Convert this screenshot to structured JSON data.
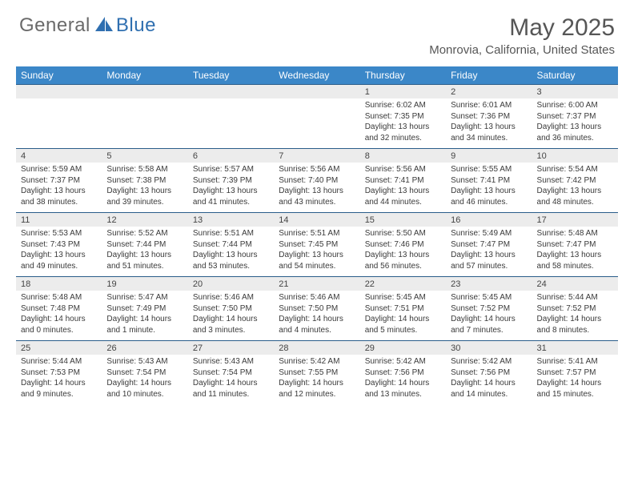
{
  "brand": {
    "part1": "General",
    "part2": "Blue"
  },
  "title": "May 2025",
  "location": "Monrovia, California, United States",
  "colors": {
    "header_bg": "#3b87c8",
    "header_text": "#ffffff",
    "daynum_bg": "#ececec",
    "border_top": "#2a5d8a",
    "body_text": "#3a3a3a",
    "title_text": "#565656",
    "logo_gray": "#6a6a6a",
    "logo_blue": "#2f6fb0"
  },
  "weekdays": [
    "Sunday",
    "Monday",
    "Tuesday",
    "Wednesday",
    "Thursday",
    "Friday",
    "Saturday"
  ],
  "weeks": [
    [
      null,
      null,
      null,
      null,
      {
        "n": "1",
        "sr": "Sunrise: 6:02 AM",
        "ss": "Sunset: 7:35 PM",
        "dl": "Daylight: 13 hours and 32 minutes."
      },
      {
        "n": "2",
        "sr": "Sunrise: 6:01 AM",
        "ss": "Sunset: 7:36 PM",
        "dl": "Daylight: 13 hours and 34 minutes."
      },
      {
        "n": "3",
        "sr": "Sunrise: 6:00 AM",
        "ss": "Sunset: 7:37 PM",
        "dl": "Daylight: 13 hours and 36 minutes."
      }
    ],
    [
      {
        "n": "4",
        "sr": "Sunrise: 5:59 AM",
        "ss": "Sunset: 7:37 PM",
        "dl": "Daylight: 13 hours and 38 minutes."
      },
      {
        "n": "5",
        "sr": "Sunrise: 5:58 AM",
        "ss": "Sunset: 7:38 PM",
        "dl": "Daylight: 13 hours and 39 minutes."
      },
      {
        "n": "6",
        "sr": "Sunrise: 5:57 AM",
        "ss": "Sunset: 7:39 PM",
        "dl": "Daylight: 13 hours and 41 minutes."
      },
      {
        "n": "7",
        "sr": "Sunrise: 5:56 AM",
        "ss": "Sunset: 7:40 PM",
        "dl": "Daylight: 13 hours and 43 minutes."
      },
      {
        "n": "8",
        "sr": "Sunrise: 5:56 AM",
        "ss": "Sunset: 7:41 PM",
        "dl": "Daylight: 13 hours and 44 minutes."
      },
      {
        "n": "9",
        "sr": "Sunrise: 5:55 AM",
        "ss": "Sunset: 7:41 PM",
        "dl": "Daylight: 13 hours and 46 minutes."
      },
      {
        "n": "10",
        "sr": "Sunrise: 5:54 AM",
        "ss": "Sunset: 7:42 PM",
        "dl": "Daylight: 13 hours and 48 minutes."
      }
    ],
    [
      {
        "n": "11",
        "sr": "Sunrise: 5:53 AM",
        "ss": "Sunset: 7:43 PM",
        "dl": "Daylight: 13 hours and 49 minutes."
      },
      {
        "n": "12",
        "sr": "Sunrise: 5:52 AM",
        "ss": "Sunset: 7:44 PM",
        "dl": "Daylight: 13 hours and 51 minutes."
      },
      {
        "n": "13",
        "sr": "Sunrise: 5:51 AM",
        "ss": "Sunset: 7:44 PM",
        "dl": "Daylight: 13 hours and 53 minutes."
      },
      {
        "n": "14",
        "sr": "Sunrise: 5:51 AM",
        "ss": "Sunset: 7:45 PM",
        "dl": "Daylight: 13 hours and 54 minutes."
      },
      {
        "n": "15",
        "sr": "Sunrise: 5:50 AM",
        "ss": "Sunset: 7:46 PM",
        "dl": "Daylight: 13 hours and 56 minutes."
      },
      {
        "n": "16",
        "sr": "Sunrise: 5:49 AM",
        "ss": "Sunset: 7:47 PM",
        "dl": "Daylight: 13 hours and 57 minutes."
      },
      {
        "n": "17",
        "sr": "Sunrise: 5:48 AM",
        "ss": "Sunset: 7:47 PM",
        "dl": "Daylight: 13 hours and 58 minutes."
      }
    ],
    [
      {
        "n": "18",
        "sr": "Sunrise: 5:48 AM",
        "ss": "Sunset: 7:48 PM",
        "dl": "Daylight: 14 hours and 0 minutes."
      },
      {
        "n": "19",
        "sr": "Sunrise: 5:47 AM",
        "ss": "Sunset: 7:49 PM",
        "dl": "Daylight: 14 hours and 1 minute."
      },
      {
        "n": "20",
        "sr": "Sunrise: 5:46 AM",
        "ss": "Sunset: 7:50 PM",
        "dl": "Daylight: 14 hours and 3 minutes."
      },
      {
        "n": "21",
        "sr": "Sunrise: 5:46 AM",
        "ss": "Sunset: 7:50 PM",
        "dl": "Daylight: 14 hours and 4 minutes."
      },
      {
        "n": "22",
        "sr": "Sunrise: 5:45 AM",
        "ss": "Sunset: 7:51 PM",
        "dl": "Daylight: 14 hours and 5 minutes."
      },
      {
        "n": "23",
        "sr": "Sunrise: 5:45 AM",
        "ss": "Sunset: 7:52 PM",
        "dl": "Daylight: 14 hours and 7 minutes."
      },
      {
        "n": "24",
        "sr": "Sunrise: 5:44 AM",
        "ss": "Sunset: 7:52 PM",
        "dl": "Daylight: 14 hours and 8 minutes."
      }
    ],
    [
      {
        "n": "25",
        "sr": "Sunrise: 5:44 AM",
        "ss": "Sunset: 7:53 PM",
        "dl": "Daylight: 14 hours and 9 minutes."
      },
      {
        "n": "26",
        "sr": "Sunrise: 5:43 AM",
        "ss": "Sunset: 7:54 PM",
        "dl": "Daylight: 14 hours and 10 minutes."
      },
      {
        "n": "27",
        "sr": "Sunrise: 5:43 AM",
        "ss": "Sunset: 7:54 PM",
        "dl": "Daylight: 14 hours and 11 minutes."
      },
      {
        "n": "28",
        "sr": "Sunrise: 5:42 AM",
        "ss": "Sunset: 7:55 PM",
        "dl": "Daylight: 14 hours and 12 minutes."
      },
      {
        "n": "29",
        "sr": "Sunrise: 5:42 AM",
        "ss": "Sunset: 7:56 PM",
        "dl": "Daylight: 14 hours and 13 minutes."
      },
      {
        "n": "30",
        "sr": "Sunrise: 5:42 AM",
        "ss": "Sunset: 7:56 PM",
        "dl": "Daylight: 14 hours and 14 minutes."
      },
      {
        "n": "31",
        "sr": "Sunrise: 5:41 AM",
        "ss": "Sunset: 7:57 PM",
        "dl": "Daylight: 14 hours and 15 minutes."
      }
    ]
  ]
}
